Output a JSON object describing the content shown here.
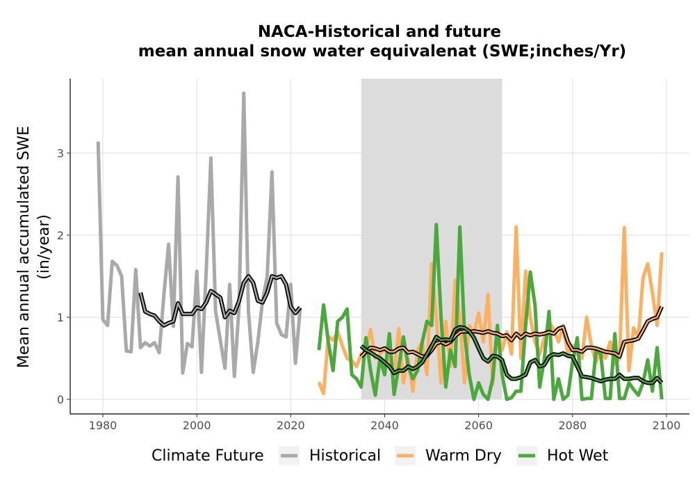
{
  "chart_data": {
    "type": "line",
    "title_lines": [
      "NACA-Historical and future",
      "mean annual snow water equivalenat (SWE;inches/Yr)"
    ],
    "ylabel_lines": [
      "Mean annual accumulated SWE",
      "(in/year)"
    ],
    "xlabel": "",
    "xlim": [
      1975,
      2105
    ],
    "ylim": [
      -0.18,
      3.9
    ],
    "x_ticks": [
      1980,
      2000,
      2020,
      2040,
      2060,
      2080,
      2100
    ],
    "y_ticks": [
      0,
      1,
      2,
      3
    ],
    "grid": true,
    "shaded_period": [
      2035,
      2065
    ],
    "legend": {
      "title": "Climate Future",
      "position": "bottom",
      "entries": [
        "Historical",
        "Warm Dry",
        "Hot Wet"
      ]
    },
    "colors": {
      "Historical": "#a9a9a9",
      "Warm Dry": "#fdb062",
      "Hot Wet": "#4aa83c",
      "smooth": "#000000",
      "shade": "#dcdcdc"
    },
    "series": [
      {
        "name": "Historical",
        "x": [
          1979,
          1980,
          1981,
          1982,
          1983,
          1984,
          1985,
          1986,
          1987,
          1988,
          1989,
          1990,
          1991,
          1992,
          1993,
          1994,
          1995,
          1996,
          1997,
          1998,
          1999,
          2000,
          2001,
          2002,
          2003,
          2004,
          2005,
          2006,
          2007,
          2008,
          2009,
          2010,
          2011,
          2012,
          2013,
          2014,
          2015,
          2016,
          2017,
          2018,
          2019,
          2020,
          2021,
          2022
        ],
        "y": [
          3.14,
          0.97,
          0.9,
          1.68,
          1.63,
          1.5,
          0.59,
          0.58,
          1.58,
          0.63,
          0.69,
          0.65,
          0.69,
          0.57,
          1.28,
          1.89,
          0.89,
          2.71,
          0.32,
          0.68,
          0.64,
          1.56,
          0.33,
          1.56,
          2.94,
          1.07,
          0.72,
          0.38,
          1.4,
          0.28,
          1.13,
          3.73,
          1.07,
          0.33,
          0.7,
          1.2,
          1.5,
          2.77,
          0.93,
          0.79,
          0.76,
          1.4,
          0.44,
          1.11
        ]
      },
      {
        "name": "Warm Dry",
        "x": [
          2026,
          2027,
          2028,
          2029,
          2030,
          2031,
          2032,
          2033,
          2034,
          2035,
          2036,
          2037,
          2038,
          2039,
          2040,
          2041,
          2042,
          2043,
          2044,
          2045,
          2046,
          2047,
          2048,
          2049,
          2050,
          2051,
          2052,
          2053,
          2054,
          2055,
          2056,
          2057,
          2058,
          2059,
          2060,
          2061,
          2062,
          2063,
          2064,
          2065,
          2066,
          2067,
          2068,
          2069,
          2070,
          2071,
          2072,
          2073,
          2074,
          2075,
          2076,
          2077,
          2078,
          2079,
          2080,
          2081,
          2082,
          2083,
          2084,
          2085,
          2086,
          2087,
          2088,
          2089,
          2090,
          2091,
          2092,
          2093,
          2094,
          2095,
          2096,
          2097,
          2098,
          2099
        ],
        "y": [
          0.21,
          0.07,
          0.77,
          0.72,
          0.82,
          0.65,
          0.5,
          0.47,
          0.4,
          0.55,
          0.6,
          0.85,
          0.5,
          0.55,
          0.62,
          0.48,
          0.3,
          0.86,
          0.2,
          0.5,
          0.1,
          0.6,
          0.7,
          0.3,
          1.65,
          1.0,
          0.2,
          0.95,
          0.4,
          1.45,
          1.0,
          0.2,
          0.9,
          0.8,
          1.05,
          0.7,
          1.28,
          0.18,
          0.85,
          0.6,
          0.82,
          0.55,
          2.1,
          0.5,
          1.56,
          1.0,
          0.7,
          0.55,
          0.75,
          0.95,
          0.85,
          0.7,
          0.9,
          0.55,
          0.65,
          0.55,
          0.5,
          1.0,
          0.65,
          0.45,
          0.6,
          0.5,
          0.7,
          0.43,
          0.5,
          2.09,
          0.35,
          0.87,
          0.75,
          1.48,
          1.65,
          1.3,
          0.9,
          1.79
        ]
      },
      {
        "name": "Hot Wet",
        "x": [
          2026,
          2027,
          2028,
          2029,
          2030,
          2031,
          2032,
          2033,
          2034,
          2035,
          2036,
          2037,
          2038,
          2039,
          2040,
          2041,
          2042,
          2043,
          2044,
          2045,
          2046,
          2047,
          2048,
          2049,
          2050,
          2051,
          2052,
          2053,
          2054,
          2055,
          2056,
          2057,
          2058,
          2059,
          2060,
          2061,
          2062,
          2063,
          2064,
          2065,
          2066,
          2067,
          2068,
          2069,
          2070,
          2071,
          2072,
          2073,
          2074,
          2075,
          2076,
          2077,
          2078,
          2079,
          2080,
          2081,
          2082,
          2083,
          2084,
          2085,
          2086,
          2087,
          2088,
          2089,
          2090,
          2091,
          2092,
          2093,
          2094,
          2095,
          2096,
          2097,
          2098,
          2099
        ],
        "y": [
          0.6,
          1.15,
          0.7,
          0.35,
          0.95,
          1.0,
          1.1,
          0.3,
          0.25,
          0.15,
          0.75,
          0.35,
          0.05,
          0.5,
          0.3,
          0.8,
          0.06,
          0.4,
          0.76,
          0.4,
          0.25,
          0.35,
          0.7,
          0.95,
          0.9,
          2.13,
          1.0,
          0.15,
          0.6,
          0.4,
          2.1,
          0.8,
          0.3,
          0.0,
          0.2,
          0.06,
          0.0,
          0.25,
          0.9,
          0.3,
          0.0,
          0.02,
          0.1,
          0.1,
          0.9,
          1.55,
          1.15,
          0.15,
          0.5,
          1.07,
          0.0,
          0.25,
          0.0,
          0.05,
          0.45,
          0.75,
          0.0,
          0.01,
          0.01,
          0.6,
          0.55,
          0.01,
          0.01,
          0.8,
          0.01,
          0.01,
          0.2,
          0.12,
          0.05,
          0.2,
          0.48,
          0.1,
          0.63,
          0.0
        ]
      },
      {
        "name": "Historical smoothed",
        "x": [
          1988,
          1989,
          1990,
          1991,
          1992,
          1993,
          1994,
          1995,
          1996,
          1997,
          1998,
          1999,
          2000,
          2001,
          2002,
          2003,
          2004,
          2005,
          2006,
          2007,
          2008,
          2009,
          2010,
          2011,
          2012,
          2013,
          2014,
          2015,
          2016,
          2017,
          2018,
          2019,
          2020,
          2021,
          2022
        ],
        "y": [
          1.3,
          1.07,
          1.04,
          1.02,
          0.95,
          0.9,
          0.93,
          0.95,
          1.17,
          1.04,
          1.04,
          1.04,
          1.12,
          1.1,
          1.18,
          1.32,
          1.28,
          1.24,
          1.0,
          1.08,
          1.05,
          1.2,
          1.42,
          1.5,
          1.42,
          1.2,
          1.18,
          1.3,
          1.5,
          1.48,
          1.5,
          1.4,
          1.13,
          1.05,
          1.12
        ]
      },
      {
        "name": "Warm Dry smoothed",
        "x": [
          2035,
          2036,
          2037,
          2038,
          2039,
          2040,
          2041,
          2042,
          2043,
          2044,
          2045,
          2046,
          2047,
          2048,
          2049,
          2050,
          2051,
          2052,
          2053,
          2054,
          2055,
          2056,
          2057,
          2058,
          2059,
          2060,
          2061,
          2062,
          2063,
          2064,
          2065,
          2066,
          2067,
          2068,
          2069,
          2070,
          2071,
          2072,
          2073,
          2074,
          2075,
          2076,
          2077,
          2078,
          2079,
          2080,
          2081,
          2082,
          2083,
          2084,
          2085,
          2086,
          2087,
          2088,
          2089,
          2090,
          2091,
          2092,
          2093,
          2094,
          2095,
          2096,
          2097,
          2098,
          2099
        ],
        "y": [
          0.52,
          0.58,
          0.63,
          0.62,
          0.6,
          0.62,
          0.58,
          0.58,
          0.62,
          0.63,
          0.57,
          0.58,
          0.55,
          0.52,
          0.53,
          0.6,
          0.68,
          0.7,
          0.67,
          0.7,
          0.77,
          0.82,
          0.83,
          0.82,
          0.83,
          0.82,
          0.81,
          0.83,
          0.81,
          0.8,
          0.77,
          0.78,
          0.72,
          0.8,
          0.75,
          0.8,
          0.78,
          0.8,
          0.79,
          0.8,
          0.82,
          0.8,
          0.86,
          0.88,
          0.7,
          0.6,
          0.6,
          0.58,
          0.63,
          0.63,
          0.62,
          0.6,
          0.58,
          0.57,
          0.56,
          0.52,
          0.7,
          0.71,
          0.72,
          0.74,
          0.84,
          0.95,
          0.98,
          1.0,
          1.13
        ]
      },
      {
        "name": "Hot Wet smoothed",
        "x": [
          2035,
          2036,
          2037,
          2038,
          2039,
          2040,
          2041,
          2042,
          2043,
          2044,
          2045,
          2046,
          2047,
          2048,
          2049,
          2050,
          2051,
          2052,
          2053,
          2054,
          2055,
          2056,
          2057,
          2058,
          2059,
          2060,
          2061,
          2062,
          2063,
          2064,
          2065,
          2066,
          2067,
          2068,
          2069,
          2070,
          2071,
          2072,
          2073,
          2074,
          2075,
          2076,
          2077,
          2078,
          2079,
          2080,
          2081,
          2082,
          2083,
          2084,
          2085,
          2086,
          2087,
          2088,
          2089,
          2090,
          2091,
          2092,
          2093,
          2094,
          2095,
          2096,
          2097,
          2098,
          2099
        ],
        "y": [
          0.65,
          0.6,
          0.57,
          0.53,
          0.5,
          0.45,
          0.4,
          0.32,
          0.35,
          0.35,
          0.4,
          0.37,
          0.4,
          0.45,
          0.55,
          0.65,
          0.76,
          0.72,
          0.73,
          0.72,
          0.85,
          0.88,
          0.87,
          0.83,
          0.75,
          0.62,
          0.5,
          0.46,
          0.53,
          0.52,
          0.48,
          0.3,
          0.25,
          0.25,
          0.27,
          0.3,
          0.45,
          0.48,
          0.4,
          0.42,
          0.52,
          0.55,
          0.54,
          0.56,
          0.53,
          0.52,
          0.4,
          0.28,
          0.27,
          0.26,
          0.24,
          0.22,
          0.24,
          0.25,
          0.25,
          0.3,
          0.25,
          0.25,
          0.26,
          0.26,
          0.22,
          0.2,
          0.2,
          0.26,
          0.2
        ]
      }
    ]
  }
}
